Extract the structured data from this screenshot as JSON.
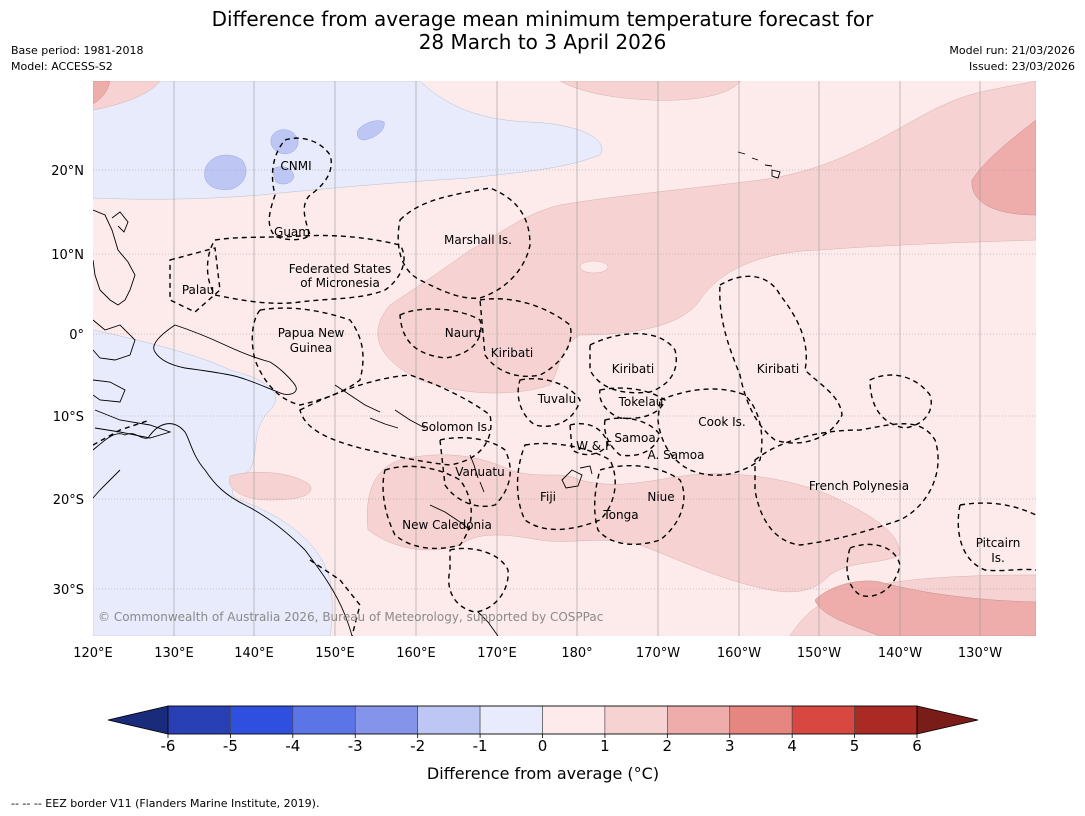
{
  "title_line1": "Difference from average mean minimum temperature forecast for",
  "title_line2": "28 March to 3 April 2026",
  "base_period": "Base period: 1981-2018",
  "model": "Model: ACCESS-S2",
  "model_run": "Model run: 21/03/2026",
  "issued": "Issued: 23/03/2026",
  "copyright": "© Commonwealth of Australia 2026, Bureau of Meteorology, supported by COSPPac",
  "footer": "--  --  -- EEZ border V11 (Flanders Marine Institute, 2019).",
  "lon_labels": [
    "120°E",
    "130°E",
    "140°E",
    "150°E",
    "160°E",
    "170°E",
    "180°",
    "170°W",
    "160°W",
    "150°W",
    "140°W",
    "130°W"
  ],
  "lat_labels": [
    "20°N",
    "10°N",
    "0°",
    "10°S",
    "20°S",
    "30°S"
  ],
  "places": [
    "CNMI",
    "Guam",
    "Marshall Is.",
    "Federated States",
    "of Micronesia",
    "Palau",
    "Papua New",
    "Guinea",
    "Nauru",
    "Kiribati",
    "Kiribati",
    "Kiribati",
    "Tuvalu",
    "Tokelau",
    "Solomon Is.",
    "W & F",
    "Samoa",
    "A. Samoa",
    "Cook Is.",
    "Vanuatu",
    "Fiji",
    "Niue",
    "Tonga",
    "French Polynesia",
    "New Caledonia",
    "Pitcairn",
    "Is."
  ],
  "colorbar": {
    "title": "Difference from average (°C)",
    "ticks": [
      "-6",
      "-5",
      "-4",
      "-3",
      "-2",
      "-1",
      "0",
      "1",
      "2",
      "3",
      "4",
      "5",
      "6"
    ],
    "colors": [
      "#283fb5",
      "#2f4fe0",
      "#5b74e6",
      "#8494ea",
      "#bec7f3",
      "#e7ebfb",
      "#fcebea",
      "#f6d3d2",
      "#eeacab",
      "#e68680",
      "#d94840",
      "#ac2a24"
    ],
    "under_color": "#1b2b7c",
    "over_color": "#7a1c18"
  }
}
